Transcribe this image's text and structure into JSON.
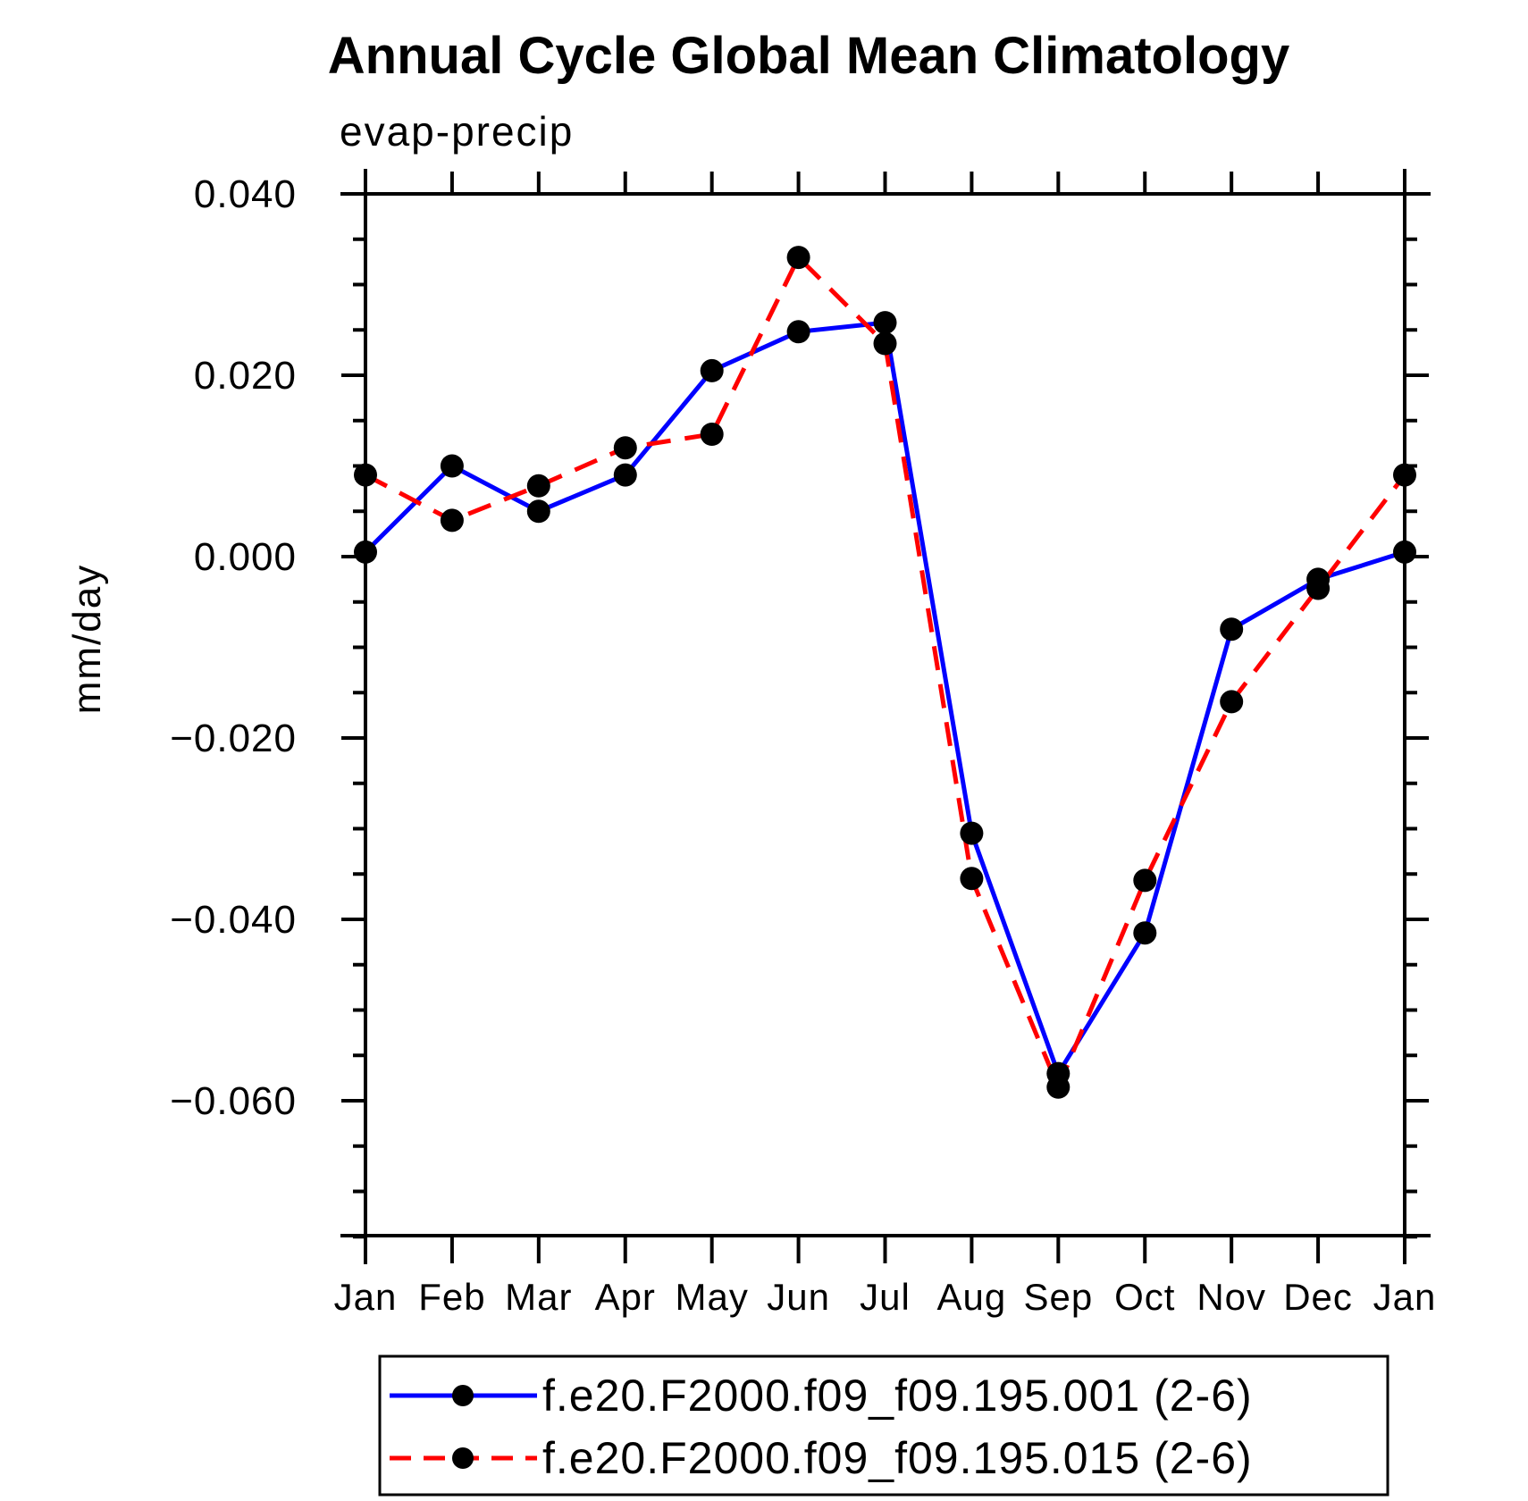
{
  "page": {
    "background": "#ffffff",
    "text_color": "#000000"
  },
  "chart_data": {
    "type": "line",
    "title": "Annual Cycle Global Mean Climatology",
    "subtitle_left": "evap-precip",
    "ylabel": "mm/day",
    "xlabel": "",
    "categories": [
      "Jan",
      "Feb",
      "Mar",
      "Apr",
      "May",
      "Jun",
      "Jul",
      "Aug",
      "Sep",
      "Oct",
      "Nov",
      "Dec",
      "Jan"
    ],
    "series": [
      {
        "name": "f.e20.F2000.f09_f09.195.001 (2-6)",
        "color": "#0000ff",
        "line_style": "solid",
        "marker": "filled-circle",
        "marker_color": "#000000",
        "values": [
          0.0005,
          0.01,
          0.005,
          0.009,
          0.0205,
          0.0248,
          0.0258,
          -0.0305,
          -0.057,
          -0.0415,
          -0.008,
          -0.0025,
          0.0005
        ]
      },
      {
        "name": "f.e20.F2000.f09_f09.195.015 (2-6)",
        "color": "#ff0000",
        "line_style": "dashed",
        "marker": "filled-circle",
        "marker_color": "#000000",
        "values": [
          0.009,
          0.004,
          0.0078,
          0.012,
          0.0135,
          0.033,
          0.0235,
          -0.0355,
          -0.0585,
          -0.0357,
          -0.016,
          -0.0035,
          0.009
        ]
      }
    ],
    "y_axis": {
      "min": -0.075,
      "max": 0.04,
      "major_tick_step": 0.02,
      "minor_tick_step": 0.005,
      "labeled_ticks": [
        0.04,
        0.02,
        0.0,
        -0.02,
        -0.04,
        -0.06
      ],
      "tick_label_decimals": 3
    },
    "x_axis": {
      "tick_per_category": true
    },
    "grid": false,
    "frame_color": "#000000",
    "legend": {
      "position": "bottom",
      "border": true,
      "entries": [
        "f.e20.F2000.f09_f09.195.001 (2-6)",
        "f.e20.F2000.f09_f09.195.015 (2-6)"
      ]
    }
  }
}
